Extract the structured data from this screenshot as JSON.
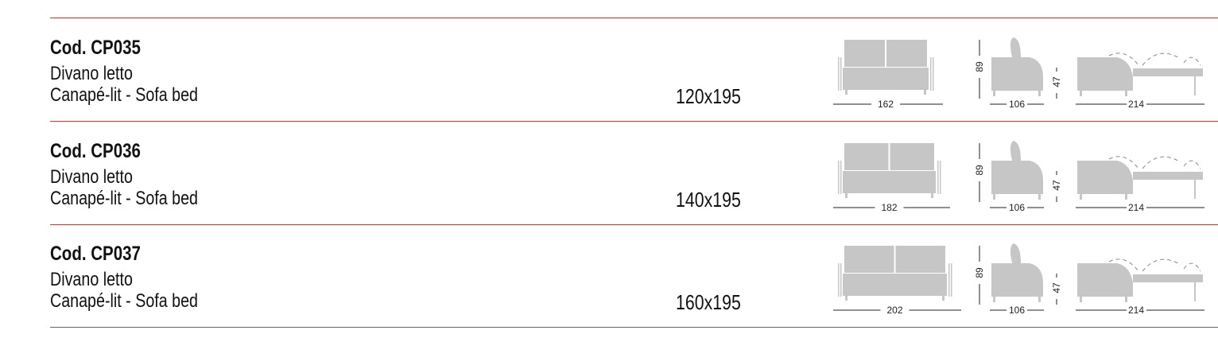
{
  "rows": [
    {
      "code": "Cod. CP035",
      "line1": "Divano letto",
      "line2": "Canapé-lit - Sofa bed",
      "size": "120x195",
      "width": "162",
      "height": "89",
      "depth": "106",
      "seat_height": "47",
      "open_length": "214"
    },
    {
      "code": "Cod. CP036",
      "line1": "Divano letto",
      "line2": "Canapé-lit - Sofa bed",
      "size": "140x195",
      "width": "182",
      "height": "89",
      "depth": "106",
      "seat_height": "47",
      "open_length": "214"
    },
    {
      "code": "Cod. CP037",
      "line1": "Divano letto",
      "line2": "Canapé-lit - Sofa bed",
      "size": "160x195",
      "width": "202",
      "height": "89",
      "depth": "106",
      "seat_height": "47",
      "open_length": "214"
    }
  ],
  "colors": {
    "rule": "#b5463f",
    "sofa_fill": "#c6c6c6"
  }
}
